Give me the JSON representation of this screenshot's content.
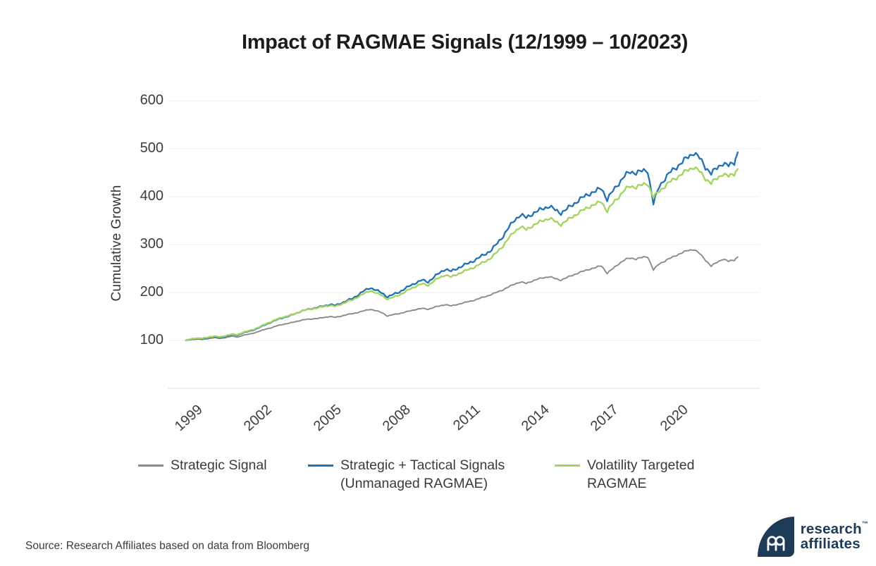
{
  "header": {
    "title": "Impact of RAGMAE Signals (12/1999 – 10/2023)"
  },
  "y_axis": {
    "label": "Cumulative Growth",
    "tick_labels": [
      "600",
      "500",
      "400",
      "300",
      "200",
      "100"
    ]
  },
  "x_axis": {
    "tick_labels": [
      "1999",
      "2002",
      "2005",
      "2008",
      "2011",
      "2014",
      "2017",
      "2020"
    ]
  },
  "legend": {
    "items": [
      {
        "label": "Strategic Signal",
        "label2": "",
        "color": "#8a8a8a"
      },
      {
        "label": "Strategic + Tactical Signals",
        "label2": "(Unmanaged RAGMAE)",
        "color": "#2070b4"
      },
      {
        "label": "Volatility Targeted",
        "label2": "RAGMAE",
        "color": "#a2d45e"
      }
    ]
  },
  "footer": {
    "source": "Source: Research Affiliates based on data from Bloomberg"
  },
  "logo": {
    "word1": "research",
    "word2": "affiliates",
    "tm": "™"
  },
  "colors": {
    "strategic_gray": "#8a8a8a",
    "tactical_blue": "#2070b4",
    "vol_target_green": "#a2d45e",
    "gridline": "#ececec",
    "baseline": "#e0e0e0",
    "brand_navy": "#1d3a56",
    "text_dark": "#1c1c1c"
  },
  "chart_data": {
    "type": "line",
    "title": "Impact of RAGMAE Signals (12/1999 – 10/2023)",
    "xlabel": "",
    "ylabel": "Cumulative Growth",
    "ylim": [
      0,
      600
    ],
    "yticks": [
      100,
      200,
      300,
      400,
      500,
      600
    ],
    "xticks": [
      1999,
      2002,
      2005,
      2008,
      2011,
      2014,
      2017,
      2020
    ],
    "grid": "horizontal",
    "legend_position": "bottom",
    "x_unit": "fractional year (Dec 1999 through Oct 2023, quarterly readings)",
    "x": [
      1999.92,
      2000.17,
      2000.42,
      2000.67,
      2000.92,
      2001.17,
      2001.42,
      2001.67,
      2001.92,
      2002.17,
      2002.42,
      2002.67,
      2002.92,
      2003.17,
      2003.42,
      2003.67,
      2003.92,
      2004.17,
      2004.42,
      2004.67,
      2004.92,
      2005.17,
      2005.42,
      2005.67,
      2005.92,
      2006.17,
      2006.42,
      2006.67,
      2006.92,
      2007.17,
      2007.42,
      2007.67,
      2007.92,
      2008.17,
      2008.42,
      2008.67,
      2008.92,
      2009.17,
      2009.42,
      2009.67,
      2009.92,
      2010.17,
      2010.42,
      2010.67,
      2010.92,
      2011.17,
      2011.42,
      2011.67,
      2011.92,
      2012.17,
      2012.42,
      2012.67,
      2012.92,
      2013.17,
      2013.42,
      2013.67,
      2013.92,
      2014.17,
      2014.42,
      2014.67,
      2014.92,
      2015.17,
      2015.42,
      2015.67,
      2015.92,
      2016.17,
      2016.42,
      2016.67,
      2016.92,
      2017.17,
      2017.42,
      2017.67,
      2017.92,
      2018.17,
      2018.42,
      2018.67,
      2018.92,
      2019.17,
      2019.42,
      2019.67,
      2019.92,
      2020.17,
      2020.42,
      2020.67,
      2020.92,
      2021.17,
      2021.42,
      2021.67,
      2021.92,
      2022.17,
      2022.42,
      2022.67,
      2022.92,
      2023.17,
      2023.42,
      2023.67,
      2023.83
    ],
    "series": [
      {
        "name": "Strategic Signal",
        "color": "#8a8a8a",
        "values": [
          100,
          102,
          103,
          102,
          104,
          106,
          104,
          106,
          109,
          107,
          111,
          113,
          116,
          120,
          124,
          127,
          131,
          134,
          136,
          139,
          142,
          144,
          145,
          146,
          148,
          150,
          148,
          151,
          154,
          156,
          159,
          162,
          165,
          162,
          158,
          151,
          154,
          156,
          159,
          162,
          165,
          167,
          165,
          169,
          172,
          175,
          172,
          175,
          178,
          181,
          184,
          188,
          192,
          196,
          201,
          206,
          212,
          218,
          222,
          219,
          224,
          228,
          231,
          233,
          229,
          226,
          231,
          236,
          241,
          245,
          249,
          252,
          256,
          240,
          250,
          260,
          268,
          272,
          270,
          273,
          275,
          247,
          260,
          266,
          272,
          278,
          283,
          288,
          290,
          281,
          268,
          255,
          263,
          270,
          265,
          268,
          275
        ]
      },
      {
        "name": "Strategic + Tactical Signals (Unmanaged RAGMAE)",
        "color": "#2070b4",
        "values": [
          100,
          102,
          104,
          103,
          106,
          108,
          106,
          109,
          112,
          111,
          116,
          119,
          123,
          128,
          134,
          139,
          144,
          148,
          151,
          156,
          161,
          164,
          167,
          169,
          172,
          175,
          173,
          178,
          183,
          188,
          196,
          204,
          210,
          205,
          199,
          191,
          196,
          201,
          208,
          215,
          221,
          226,
          222,
          232,
          241,
          249,
          244,
          250,
          256,
          261,
          267,
          274,
          281,
          289,
          303,
          318,
          336,
          352,
          362,
          356,
          364,
          370,
          376,
          380,
          372,
          366,
          374,
          383,
          392,
          400,
          407,
          411,
          418,
          394,
          412,
          428,
          443,
          452,
          450,
          453,
          455,
          385,
          422,
          438,
          452,
          462,
          472,
          483,
          492,
          480,
          462,
          448,
          460,
          470,
          464,
          472,
          494
        ]
      },
      {
        "name": "Volatility Targeted RAGMAE",
        "color": "#a2d45e",
        "values": [
          100,
          103,
          105,
          104,
          107,
          109,
          107,
          110,
          113,
          112,
          117,
          120,
          124,
          129,
          135,
          140,
          145,
          149,
          152,
          156,
          161,
          164,
          166,
          168,
          171,
          173,
          171,
          176,
          181,
          185,
          192,
          198,
          204,
          199,
          194,
          186,
          190,
          195,
          201,
          208,
          214,
          218,
          215,
          224,
          231,
          237,
          232,
          238,
          243,
          248,
          253,
          259,
          266,
          273,
          285,
          298,
          314,
          328,
          337,
          331,
          339,
          345,
          351,
          355,
          348,
          342,
          350,
          358,
          366,
          373,
          380,
          384,
          390,
          370,
          386,
          400,
          414,
          422,
          420,
          424,
          428,
          398,
          412,
          422,
          432,
          440,
          448,
          456,
          462,
          452,
          438,
          428,
          438,
          448,
          442,
          448,
          459
        ]
      }
    ]
  }
}
